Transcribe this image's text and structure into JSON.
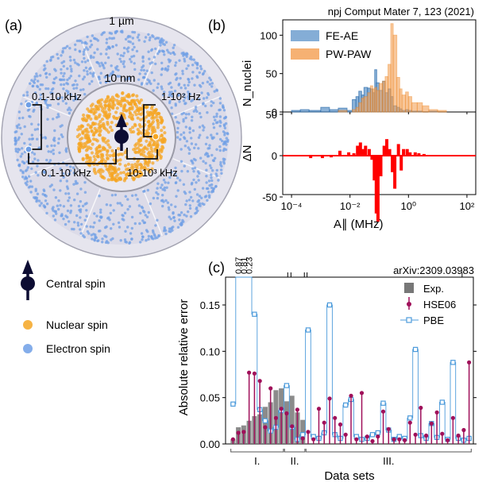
{
  "panel_labels": {
    "a": "(a)",
    "b": "(b)",
    "c": "(c)"
  },
  "panel_a": {
    "scale_outer": "1 µm",
    "scale_inner": "10 nm",
    "annotations": [
      "0.1-10 kHz",
      "0.1-10 kHz",
      "1-10² Hz",
      "10-10³ kHz"
    ],
    "legend": [
      {
        "label": "Central spin",
        "symbol": "arrow-dot"
      },
      {
        "label": "Nuclear spin",
        "color": "#f5a623"
      },
      {
        "label": "Electron spin",
        "color": "#6f9fe6"
      }
    ]
  },
  "chart_data": [
    {
      "type": "bar",
      "citation": "npj Comput Mater 7, 123 (2021)",
      "xlabel": "A∥ (MHz)",
      "xscale": "log",
      "xlim": [
        5e-05,
        200
      ],
      "xticks": [
        "10⁻⁴",
        "10⁻²",
        "10⁰",
        "10²"
      ],
      "top": {
        "ylabel": "N_nuclei",
        "ylim": [
          0,
          120
        ],
        "yticks": [
          "0",
          "50",
          "100"
        ],
        "x": [
          0.0001,
          0.0002,
          0.0004,
          0.001,
          0.002,
          0.004,
          0.008,
          0.012,
          0.016,
          0.02,
          0.025,
          0.03,
          0.04,
          0.05,
          0.06,
          0.07,
          0.08,
          0.1,
          0.13,
          0.16,
          0.2,
          0.25,
          0.3,
          0.4,
          0.5,
          0.6,
          0.8,
          1,
          1.3,
          2,
          3,
          5,
          10
        ],
        "series": [
          {
            "name": "FE-AE",
            "color": "#6f9fcf",
            "values": [
              2,
              3,
              2,
              6,
              3,
              5,
              2,
              16,
              20,
              27,
              22,
              32,
              31,
              30,
              25,
              55,
              38,
              28,
              40,
              25,
              30,
              20,
              8,
              6,
              4,
              2,
              3,
              2,
              1,
              1,
              0,
              1,
              0
            ]
          },
          {
            "name": "PW-PAW",
            "color": "#f5a35a",
            "values": [
              0,
              0,
              0,
              0,
              0,
              2,
              0,
              3,
              6,
              12,
              18,
              20,
              25,
              34,
              30,
              32,
              28,
              37,
              40,
              46,
              62,
              115,
              100,
              45,
              30,
              22,
              26,
              20,
              12,
              12,
              8,
              3,
              2
            ]
          }
        ]
      },
      "bottom": {
        "ylabel": "ΔN",
        "ylim": [
          -80,
          80
        ],
        "yticks": [
          "50",
          "0",
          "-50"
        ],
        "x": [
          0.0004,
          0.001,
          0.002,
          0.004,
          0.008,
          0.012,
          0.016,
          0.02,
          0.025,
          0.03,
          0.04,
          0.05,
          0.06,
          0.07,
          0.08,
          0.1,
          0.13,
          0.16,
          0.2,
          0.25,
          0.3,
          0.4,
          0.5,
          0.6,
          0.8,
          1,
          1.5,
          2,
          3
        ],
        "values": [
          -3,
          -3,
          -2,
          6,
          4,
          3,
          12,
          16,
          8,
          12,
          8,
          -5,
          -30,
          -70,
          -80,
          -25,
          12,
          20,
          8,
          -20,
          -40,
          14,
          -18,
          8,
          8,
          4,
          4,
          3,
          2
        ],
        "color": "#ff0000"
      }
    },
    {
      "type": "bar+line",
      "citation": "arXiv:2309.03983",
      "xlabel": "Data sets",
      "ylabel": "Absolute relative error",
      "ylim": [
        0,
        0.18
      ],
      "yticks": [
        "0.00",
        "0.05",
        "0.10",
        "0.15"
      ],
      "group_labels": [
        "I.",
        "II.",
        "III."
      ],
      "groups": [
        {
          "start": 0,
          "end": 9
        },
        {
          "start": 10,
          "end": 13
        },
        {
          "start": 14,
          "end": 44
        }
      ],
      "offscale_labels": [
        "0.87",
        "0.81",
        "0.23"
      ],
      "series": [
        {
          "name": "Exp.",
          "color": "#777777",
          "values": [
            0.005,
            0.018,
            0.02,
            0.025,
            0.03,
            0.032,
            0.04,
            0.045,
            0.058,
            0.06,
            0.046,
            0.052,
            0.034,
            0.026,
            0,
            0,
            0,
            0,
            0,
            0,
            0,
            0,
            0,
            0,
            0,
            0,
            0,
            0,
            0,
            0,
            0,
            0,
            0,
            0,
            0,
            0,
            0,
            0,
            0,
            0,
            0,
            0,
            0,
            0,
            0
          ]
        },
        {
          "name": "HSE06",
          "color": "#a0105a",
          "values": [
            0.005,
            0.012,
            0.013,
            0.077,
            0.076,
            0.068,
            0.018,
            0.06,
            0.028,
            0.038,
            0.033,
            0.019,
            0.037,
            0.006,
            0.013,
            0.005,
            0.038,
            0.023,
            0.049,
            0.028,
            0.021,
            0.01,
            0.052,
            0.005,
            0.055,
            0.008,
            0.003,
            0.008,
            0.035,
            0.016,
            0.005,
            0.005,
            0.004,
            0.023,
            0.01,
            0.039,
            0.009,
            0.022,
            0.034,
            0.011,
            0.004,
            0.028,
            0.009,
            0.015,
            0.088
          ]
        },
        {
          "name": "PBE",
          "color": "#4d9bdb",
          "values": [
            0.043,
            0.18,
            0.18,
            0.18,
            0.14,
            0.037,
            0.025,
            0.014,
            0.018,
            0.036,
            0.063,
            0.018,
            0.005,
            0.01,
            0.123,
            0.008,
            0.006,
            0.012,
            0.15,
            0.01,
            0.006,
            0.042,
            0.048,
            0.008,
            0.005,
            0.006,
            0.01,
            0.012,
            0.044,
            0.015,
            0.005,
            0.008,
            0.006,
            0.028,
            0.102,
            0.009,
            0.006,
            0.022,
            0.007,
            0.045,
            0.005,
            0.088,
            0.006,
            0.004,
            0.006
          ]
        }
      ]
    }
  ]
}
